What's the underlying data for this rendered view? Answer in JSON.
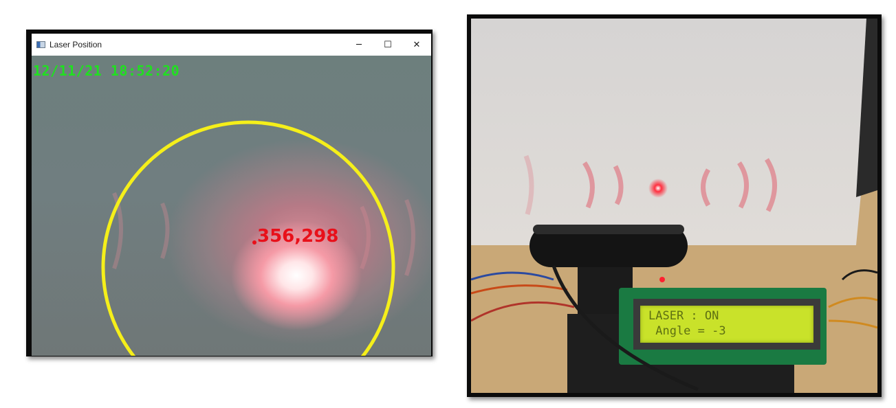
{
  "window": {
    "title": "Laser Position",
    "controls": {
      "minimize": "─",
      "maximize": "☐",
      "close": "✕"
    }
  },
  "overlay": {
    "timestamp": "12/11/21  18:52:20",
    "coordinates": "356,298",
    "circle_color": "#f5ef1a",
    "text_color": "#e8101a",
    "timestamp_color": "#20e020"
  },
  "lcd": {
    "line1": "LASER : ON",
    "line2": " Angle = -3"
  }
}
